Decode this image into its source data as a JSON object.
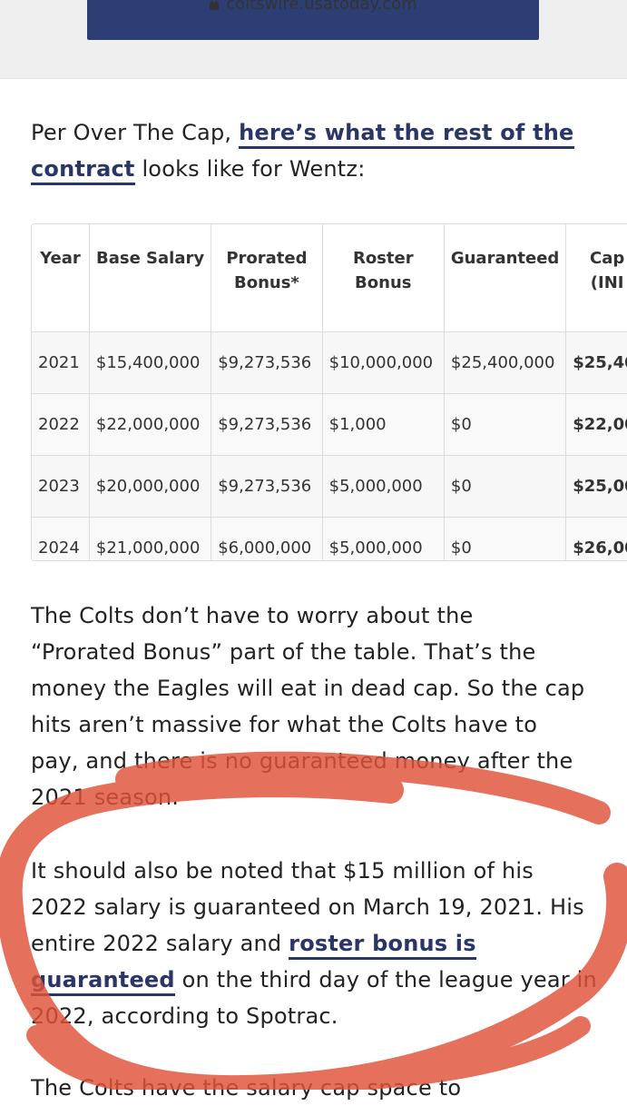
{
  "browser": {
    "domain": "coltswire.usatoday.com"
  },
  "intro": {
    "prefix": "Per Over The Cap, ",
    "link1": "here’s what the rest of the",
    "link2": "contract",
    "suffix": " looks like for Wentz:"
  },
  "table": {
    "headers": [
      {
        "l1": "Year",
        "l2": ""
      },
      {
        "l1": "Base Salary",
        "l2": ""
      },
      {
        "l1": "Prorated",
        "l2": "Bonus*"
      },
      {
        "l1": "Roster",
        "l2": "Bonus"
      },
      {
        "l1": "Guaranteed",
        "l2": ""
      },
      {
        "l1": "Cap",
        "l2": "(INI"
      }
    ],
    "rows": [
      [
        "2021",
        "$15,400,000",
        "$9,273,536",
        "$10,000,000",
        "$25,400,000",
        "$25,40"
      ],
      [
        "2022",
        "$22,000,000",
        "$9,273,536",
        "$1,000",
        "$0",
        "$22,00"
      ],
      [
        "2023",
        "$20,000,000",
        "$9,273,536",
        "$5,000,000",
        "$0",
        "$25,00"
      ],
      [
        "2024",
        "$21,000,000",
        "$6,000,000",
        "$5,000,000",
        "$0",
        "$26,00"
      ]
    ]
  },
  "para2": {
    "l1": "The Colts don’t have to worry about the",
    "l2": "“Prorated Bonus” part of the table. That’s the",
    "l3": "money the Eagles will eat in dead cap. So the cap",
    "l4": "hits aren’t massive for what the Colts have to",
    "l5": "pay, and there is no guaranteed money after the",
    "l6": "2021 season."
  },
  "para3": {
    "l1": "It should also be noted that $15 million of his",
    "l2": "2022 salary is guaranteed on March 19, 2021. His",
    "l3a": "entire 2022 salary and ",
    "l3link": "roster bonus is",
    "l4link": "guaranteed",
    "l4b": " on the third day of the league year in",
    "l5": "2022, according to Spotrac."
  },
  "para4": {
    "l1": "The Colts have the salary cap space to"
  },
  "annotation": {
    "color": "#e0533a"
  }
}
